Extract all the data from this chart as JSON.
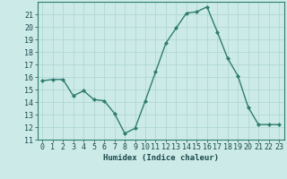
{
  "x": [
    0,
    1,
    2,
    3,
    4,
    5,
    6,
    7,
    8,
    9,
    10,
    11,
    12,
    13,
    14,
    15,
    16,
    17,
    18,
    19,
    20,
    21,
    22,
    23
  ],
  "y": [
    15.7,
    15.8,
    15.8,
    14.5,
    14.9,
    14.2,
    14.1,
    13.1,
    11.5,
    11.9,
    14.1,
    16.4,
    18.7,
    19.9,
    21.1,
    21.2,
    21.6,
    19.6,
    17.5,
    16.1,
    13.6,
    12.2,
    12.2,
    12.2
  ],
  "xlim": [
    -0.5,
    23.5
  ],
  "ylim": [
    11,
    22
  ],
  "yticks": [
    11,
    12,
    13,
    14,
    15,
    16,
    17,
    18,
    19,
    20,
    21
  ],
  "xticks": [
    0,
    1,
    2,
    3,
    4,
    5,
    6,
    7,
    8,
    9,
    10,
    11,
    12,
    13,
    14,
    15,
    16,
    17,
    18,
    19,
    20,
    21,
    22,
    23
  ],
  "xlabel": "Humidex (Indice chaleur)",
  "line_color": "#2e7d6e",
  "marker_color": "#2e7d6e",
  "bg_color": "#cceae8",
  "grid_color": "#b0d8d5",
  "marker": "D",
  "markersize": 2,
  "linewidth": 1.0,
  "xlabel_fontsize": 6.5,
  "tick_fontsize": 6,
  "ylabel_fontsize": 6
}
